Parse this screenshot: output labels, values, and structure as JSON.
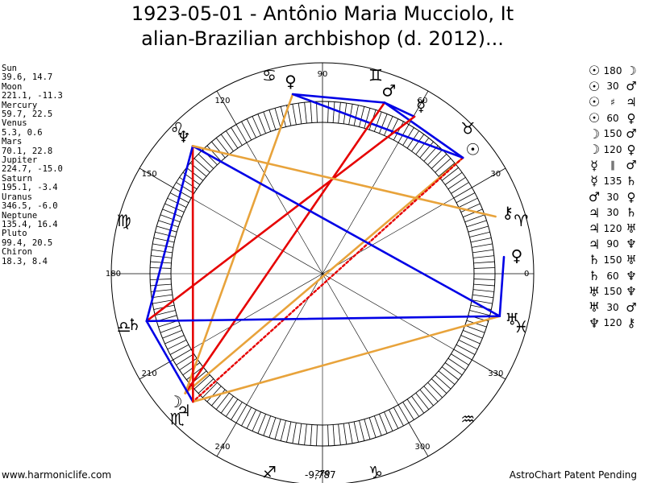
{
  "title": {
    "line1": "1923-05-01 - Antônio Maria Mucciolo, It",
    "line2": "alian-Brazilian archbishop (d. 2012)..."
  },
  "planets": [
    {
      "name": "Sun",
      "glyph": "sun-icon",
      "symbol": "☉",
      "coords": "39.6, 14.7",
      "lon": 39.6,
      "lat": 14.7
    },
    {
      "name": "Moon",
      "glyph": "moon-icon",
      "symbol": "☽",
      "coords": "221.1, -11.3",
      "lon": 221.1,
      "lat": -11.3
    },
    {
      "name": "Mercury",
      "glyph": "mercury-icon",
      "symbol": "☿",
      "coords": "59.7, 22.5",
      "lon": 59.7,
      "lat": 22.5
    },
    {
      "name": "Venus",
      "glyph": "venus-icon",
      "symbol": "♀",
      "coords": "5.3, 0.6",
      "lon": 5.3,
      "lat": 0.6
    },
    {
      "name": "Mars",
      "glyph": "mars-icon",
      "symbol": "♂",
      "coords": "70.1, 22.8",
      "lon": 70.1,
      "lat": 22.8
    },
    {
      "name": "Jupiter",
      "glyph": "jupiter-icon",
      "symbol": "♃",
      "coords": "224.7, -15.0",
      "lon": 224.7,
      "lat": -15.0
    },
    {
      "name": "Saturn",
      "glyph": "saturn-icon",
      "symbol": "♄",
      "coords": "195.1, -3.4",
      "lon": 195.1,
      "lat": -3.4
    },
    {
      "name": "Uranus",
      "glyph": "uranus-icon",
      "symbol": "♅",
      "coords": "346.5, -6.0",
      "lon": 346.5,
      "lat": -6.0
    },
    {
      "name": "Neptune",
      "glyph": "neptune-icon",
      "symbol": "♆",
      "coords": "135.4, 16.4",
      "lon": 135.4,
      "lat": 16.4
    },
    {
      "name": "Pluto",
      "glyph": "pluto-icon",
      "symbol": "♀",
      "coords": "99.4, 20.5",
      "lon": 99.4,
      "lat": 20.5
    },
    {
      "name": "Chiron",
      "glyph": "chiron-icon",
      "symbol": "⚷",
      "coords": "18.3, 8.4",
      "lon": 18.3,
      "lat": 8.4
    }
  ],
  "wheel": {
    "degree_labels": [
      "0",
      "30",
      "60",
      "90",
      "120",
      "150",
      "180",
      "210",
      "240",
      "270",
      "300",
      "330"
    ],
    "zodiac_signs": [
      {
        "name": "aries-icon",
        "symbol": "♈",
        "lon": 15
      },
      {
        "name": "taurus-icon",
        "symbol": "♉",
        "lon": 45
      },
      {
        "name": "gemini-icon",
        "symbol": "♊",
        "lon": 75
      },
      {
        "name": "cancer-icon",
        "symbol": "♋",
        "lon": 105
      },
      {
        "name": "leo-icon",
        "symbol": "♌",
        "lon": 135
      },
      {
        "name": "virgo-icon",
        "symbol": "♍",
        "lon": 165
      },
      {
        "name": "libra-icon",
        "symbol": "♎",
        "lon": 195
      },
      {
        "name": "scorpio-icon",
        "symbol": "♏",
        "lon": 225
      },
      {
        "name": "sagittarius-icon",
        "symbol": "♐",
        "lon": 255
      },
      {
        "name": "capricorn-icon",
        "symbol": "♑",
        "lon": 285
      },
      {
        "name": "aquarius-icon",
        "symbol": "♒",
        "lon": 315
      },
      {
        "name": "pisces-icon",
        "symbol": "♓",
        "lon": 345
      }
    ]
  },
  "aspects": [
    {
      "p1": "☉",
      "aspect": "180",
      "p2": "☽",
      "from": 0,
      "to": 1,
      "color": "#e8a33b",
      "style": "solid"
    },
    {
      "p1": "☉",
      "aspect": "30",
      "p2": "♂",
      "from": 0,
      "to": 4,
      "color": "#0000e6",
      "style": "solid"
    },
    {
      "p1": "☉",
      "aspect": "♯",
      "p2": "♃",
      "from": 0,
      "to": 5,
      "color": "#e60000",
      "style": "dotted"
    },
    {
      "p1": "☉",
      "aspect": "60",
      "p2": "♀",
      "from": 0,
      "to": 9,
      "color": "#0000e6",
      "style": "solid"
    },
    {
      "p1": "☽",
      "aspect": "150",
      "p2": "♂",
      "from": 1,
      "to": 4,
      "color": "#e60000",
      "style": "solid"
    },
    {
      "p1": "☽",
      "aspect": "120",
      "p2": "♀",
      "from": 1,
      "to": 9,
      "color": "#e8a33b",
      "style": "solid"
    },
    {
      "p1": "☿",
      "aspect": "∥",
      "p2": "♂",
      "from": 2,
      "to": 4,
      "color": "#0000e6",
      "style": "solid"
    },
    {
      "p1": "☿",
      "aspect": "135",
      "p2": "♄",
      "from": 2,
      "to": 6,
      "color": "#e60000",
      "style": "solid"
    },
    {
      "p1": "♂",
      "aspect": "30",
      "p2": "♀",
      "from": 4,
      "to": 9,
      "color": "#0000e6",
      "style": "solid"
    },
    {
      "p1": "♃",
      "aspect": "30",
      "p2": "♄",
      "from": 5,
      "to": 6,
      "color": "#0000e6",
      "style": "solid"
    },
    {
      "p1": "♃",
      "aspect": "120",
      "p2": "♅",
      "from": 5,
      "to": 7,
      "color": "#e8a33b",
      "style": "solid"
    },
    {
      "p1": "♃",
      "aspect": "90",
      "p2": "♆",
      "from": 5,
      "to": 8,
      "color": "#e60000",
      "style": "solid"
    },
    {
      "p1": "♄",
      "aspect": "150",
      "p2": "♅",
      "from": 6,
      "to": 7,
      "color": "#0000e6",
      "style": "solid"
    },
    {
      "p1": "♄",
      "aspect": "60",
      "p2": "♆",
      "from": 6,
      "to": 8,
      "color": "#0000e6",
      "style": "solid"
    },
    {
      "p1": "♅",
      "aspect": "150",
      "p2": "♆",
      "from": 7,
      "to": 8,
      "color": "#0000e6",
      "style": "solid"
    },
    {
      "p1": "♅",
      "aspect": "30",
      "p2": "♂",
      "from": 7,
      "to": 3,
      "color": "#0000e6",
      "style": "solid"
    },
    {
      "p1": "♆",
      "aspect": "120",
      "p2": "⚷",
      "from": 8,
      "to": 10,
      "color": "#e8a33b",
      "style": "solid"
    }
  ],
  "footer": {
    "website": "www.harmoniclife.com",
    "center_value": "-9,787",
    "patent": "AstroChart Patent Pending"
  }
}
